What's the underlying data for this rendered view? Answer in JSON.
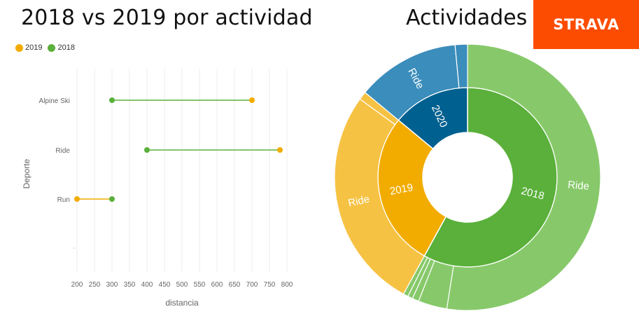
{
  "left_title": "2018 vs 2019 por actividad",
  "right_title": "Actividades",
  "logo_text": "STRAVA",
  "colors": {
    "y2019": "#f2ac00",
    "y2018": "#5ab03a",
    "y2020": "#00608f",
    "ride2019": "#f6c243",
    "ride2018": "#87c96a",
    "ride2020": "#3b8dbb",
    "brand": "#fc4c02"
  },
  "legend": [
    {
      "label": "2019",
      "color": "#f2ac00"
    },
    {
      "label": "2018",
      "color": "#5ab03a"
    }
  ],
  "chart_data": [
    {
      "type": "dumbbell",
      "xlabel": "distancia",
      "ylabel": "Deporte",
      "xlim": [
        200,
        800
      ],
      "xticks": [
        200,
        250,
        300,
        350,
        400,
        450,
        500,
        550,
        600,
        650,
        700,
        750,
        800
      ],
      "categories": [
        "Alpine Ski",
        "Ride",
        "Run",
        ""
      ],
      "series": [
        {
          "name": "2019",
          "values": [
            700,
            780,
            200,
            null
          ]
        },
        {
          "name": "2018",
          "values": [
            300,
            400,
            300,
            null
          ]
        }
      ],
      "grid": true
    },
    {
      "type": "sunburst",
      "inner": [
        {
          "label": "2018",
          "value": 58,
          "color": "#5ab03a"
        },
        {
          "label": "2019",
          "value": 28,
          "color": "#f2ac00"
        },
        {
          "label": "2020",
          "value": 14,
          "color": "#00608f"
        }
      ],
      "outer": [
        {
          "label": "Ride",
          "parent": "2018",
          "value": 52.5,
          "color": "#87c96a"
        },
        {
          "label": "",
          "parent": "2018",
          "value": 3.5,
          "color": "#87c96a"
        },
        {
          "label": "",
          "parent": "2018",
          "value": 0.8,
          "color": "#87c96a"
        },
        {
          "label": "",
          "parent": "2018",
          "value": 0.6,
          "color": "#87c96a"
        },
        {
          "label": "",
          "parent": "2018",
          "value": 0.6,
          "color": "#87c96a"
        },
        {
          "label": "Ride",
          "parent": "2019",
          "value": 27.0,
          "color": "#f6c243"
        },
        {
          "label": "",
          "parent": "2019",
          "value": 1.0,
          "color": "#f6c243"
        },
        {
          "label": "Ride",
          "parent": "2020",
          "value": 12.5,
          "color": "#3b8dbb"
        },
        {
          "label": "",
          "parent": "2020",
          "value": 1.5,
          "color": "#3b8dbb"
        }
      ]
    }
  ]
}
